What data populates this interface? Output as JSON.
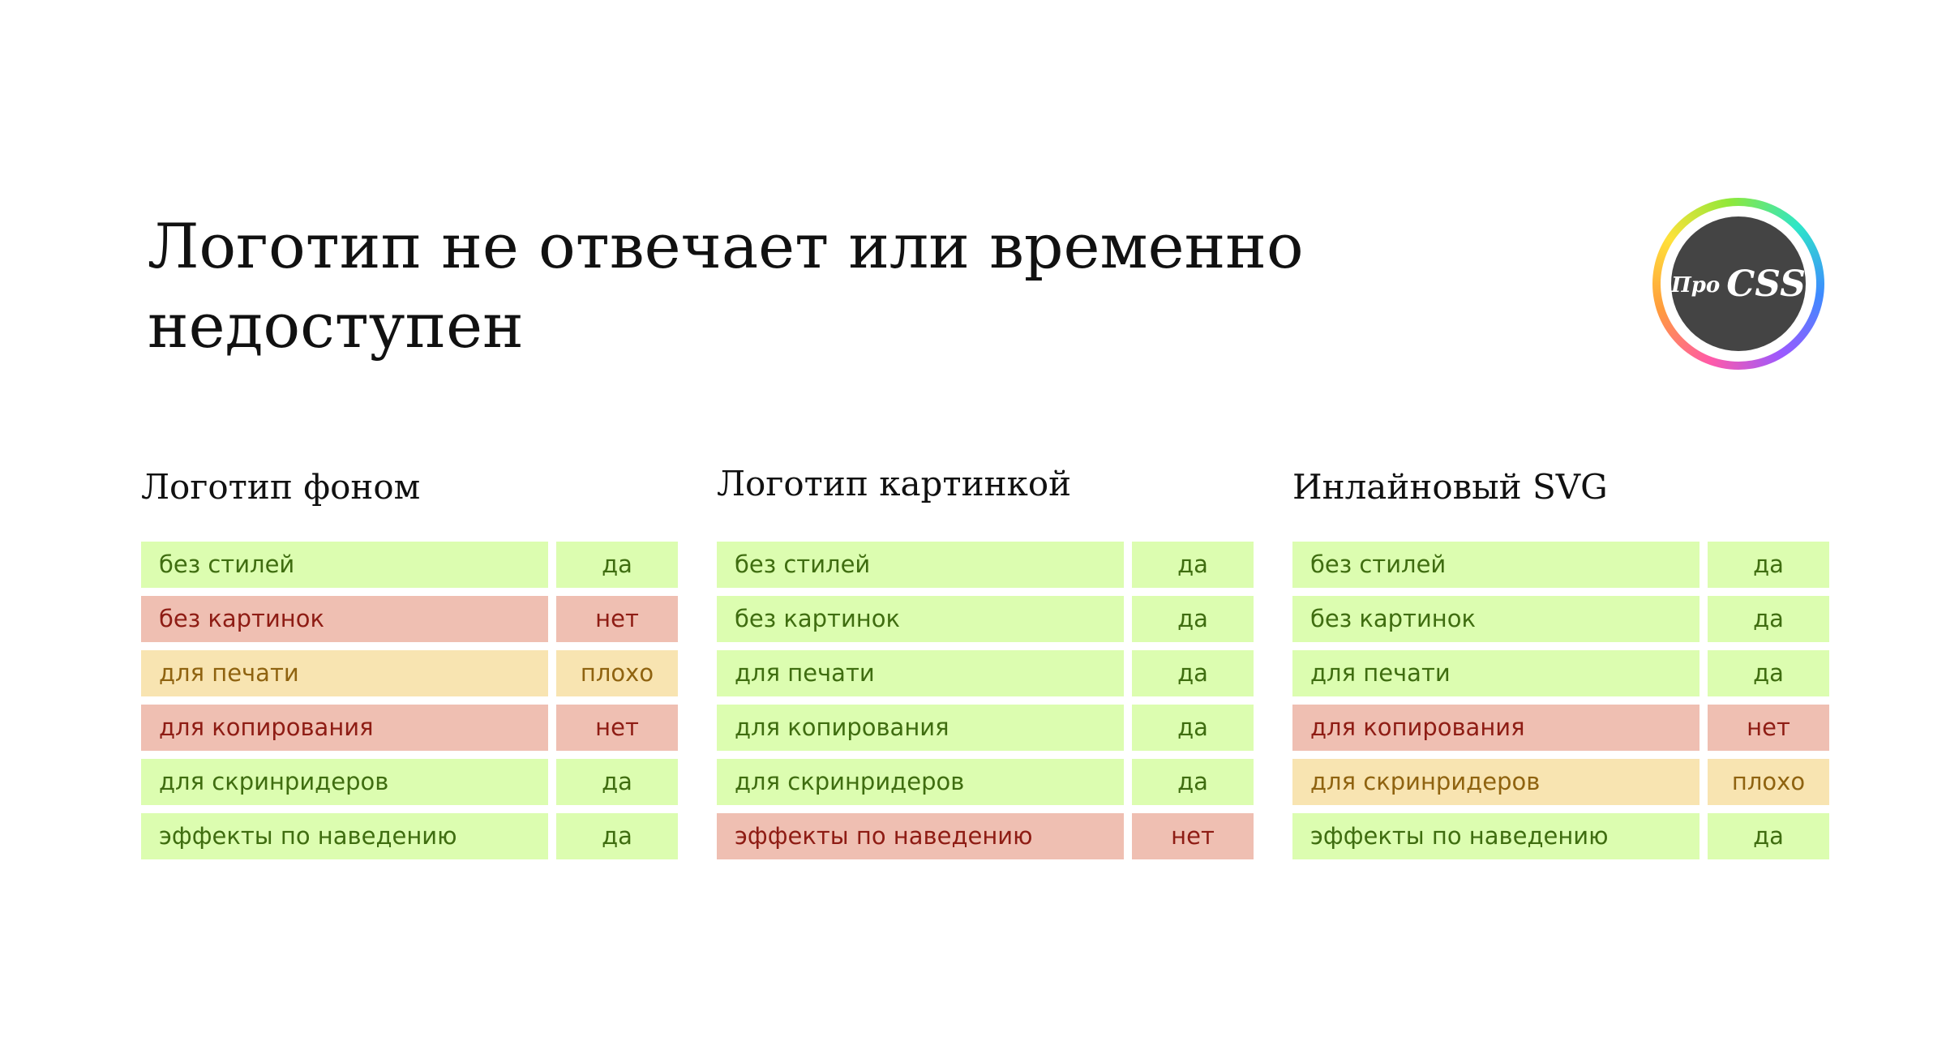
{
  "title": "Логотип не отвечает или временно недоступен",
  "logo": {
    "small_text": "Про",
    "big_text": "CSS"
  },
  "columns": [
    {
      "heading": "Логотип фоном",
      "rows": [
        {
          "feature": "без стилей",
          "value": "да",
          "status": "good"
        },
        {
          "feature": "без картинок",
          "value": "нет",
          "status": "bad"
        },
        {
          "feature": "для печати",
          "value": "плохо",
          "status": "poor"
        },
        {
          "feature": "для копирования",
          "value": "нет",
          "status": "bad"
        },
        {
          "feature": "для скринридеров",
          "value": "да",
          "status": "good"
        },
        {
          "feature": "эффекты по наведению",
          "value": "да",
          "status": "good"
        }
      ]
    },
    {
      "heading": "Логотип картинкой",
      "rows": [
        {
          "feature": "без стилей",
          "value": "да",
          "status": "good"
        },
        {
          "feature": "без картинок",
          "value": "да",
          "status": "good"
        },
        {
          "feature": "для печати",
          "value": "да",
          "status": "good"
        },
        {
          "feature": "для копирования",
          "value": "да",
          "status": "good"
        },
        {
          "feature": "для скринридеров",
          "value": "да",
          "status": "good"
        },
        {
          "feature": "эффекты по наведению",
          "value": "нет",
          "status": "bad"
        }
      ]
    },
    {
      "heading": "Инлайновый SVG",
      "rows": [
        {
          "feature": "без стилей",
          "value": "да",
          "status": "good"
        },
        {
          "feature": "без картинок",
          "value": "да",
          "status": "good"
        },
        {
          "feature": "для печати",
          "value": "да",
          "status": "good"
        },
        {
          "feature": "для копирования",
          "value": "нет",
          "status": "bad"
        },
        {
          "feature": "для скринридеров",
          "value": "плохо",
          "status": "poor"
        },
        {
          "feature": "эффекты по наведению",
          "value": "да",
          "status": "good"
        }
      ]
    }
  ],
  "status_colors": {
    "good": {
      "background": "#dcfdb0",
      "text": "#3f6d10"
    },
    "bad": {
      "background": "#efbfb2",
      "text": "#8e1c14"
    },
    "poor": {
      "background": "#f8e4b1",
      "text": "#8f6310"
    }
  }
}
